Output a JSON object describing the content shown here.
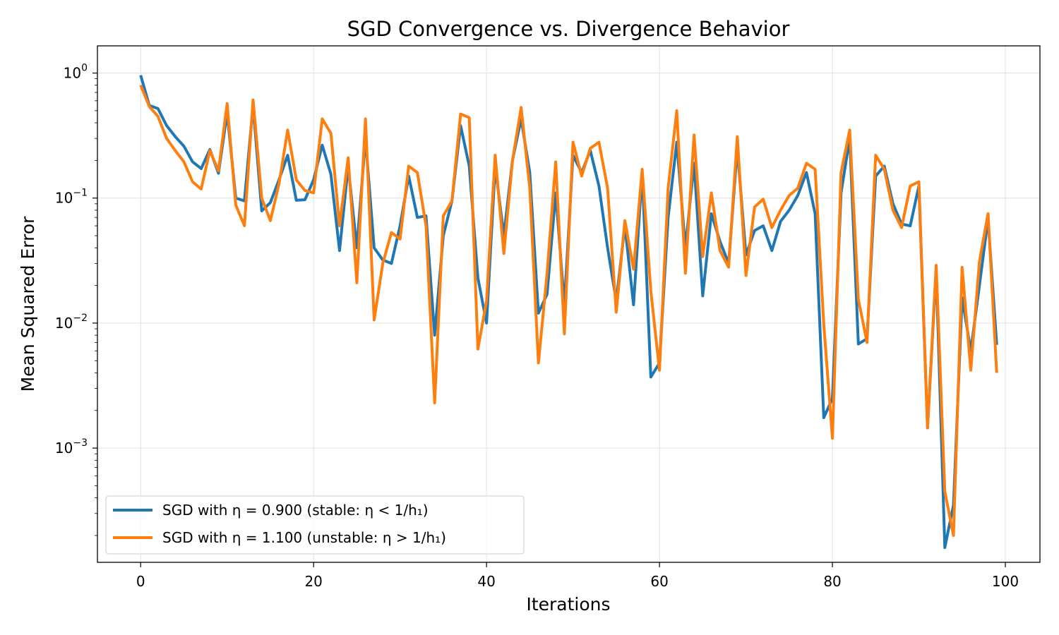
{
  "chart_data": {
    "type": "line",
    "title": "SGD Convergence vs. Divergence Behavior",
    "xlabel": "Iterations",
    "ylabel": "Mean Squared Error",
    "xlim": [
      -5,
      104
    ],
    "ylim": [
      0.000122,
      1.65
    ],
    "yscale": "log",
    "grid": true,
    "legend_position": "lower-left",
    "x_ticks": [
      {
        "value": 0,
        "label": "0"
      },
      {
        "value": 20,
        "label": "20"
      },
      {
        "value": 40,
        "label": "40"
      },
      {
        "value": 60,
        "label": "60"
      },
      {
        "value": 80,
        "label": "80"
      },
      {
        "value": 100,
        "label": "100"
      }
    ],
    "y_ticks": [
      {
        "value": 1,
        "base": "10",
        "exp": "0"
      },
      {
        "value": 0.1,
        "base": "10",
        "exp": "−1"
      },
      {
        "value": 0.01,
        "base": "10",
        "exp": "−2"
      },
      {
        "value": 0.001,
        "base": "10",
        "exp": "−3"
      }
    ],
    "series": [
      {
        "name": "SGD with η = 0.900 (stable: η < 1/h₁)",
        "color": "#1f77b4",
        "values": [
          0.96,
          0.55,
          0.52,
          0.38,
          0.31,
          0.26,
          0.195,
          0.172,
          0.245,
          0.158,
          0.48,
          0.1,
          0.095,
          0.55,
          0.079,
          0.092,
          0.14,
          0.22,
          0.096,
          0.097,
          0.14,
          0.265,
          0.155,
          0.038,
          0.18,
          0.04,
          0.3,
          0.04,
          0.032,
          0.03,
          0.06,
          0.15,
          0.07,
          0.072,
          0.008,
          0.05,
          0.095,
          0.38,
          0.18,
          0.023,
          0.01,
          0.18,
          0.05,
          0.2,
          0.43,
          0.16,
          0.012,
          0.017,
          0.11,
          0.014,
          0.22,
          0.16,
          0.24,
          0.125,
          0.04,
          0.015,
          0.06,
          0.014,
          0.16,
          0.0037,
          0.0048,
          0.07,
          0.28,
          0.04,
          0.19,
          0.0165,
          0.075,
          0.045,
          0.03,
          0.25,
          0.035,
          0.055,
          0.06,
          0.038,
          0.065,
          0.08,
          0.105,
          0.16,
          0.075,
          0.00175,
          0.0025,
          0.11,
          0.3,
          0.0068,
          0.0075,
          0.15,
          0.18,
          0.09,
          0.062,
          0.06,
          0.125,
          0.00145,
          0.027,
          0.00016,
          0.00035,
          0.016,
          0.006,
          0.02,
          0.068,
          0.0067
        ]
      },
      {
        "name": "SGD with η = 1.100 (unstable: η > 1/h₁)",
        "color": "#ff7f0e",
        "values": [
          0.8,
          0.54,
          0.45,
          0.3,
          0.24,
          0.195,
          0.135,
          0.118,
          0.24,
          0.165,
          0.57,
          0.088,
          0.06,
          0.61,
          0.1,
          0.066,
          0.13,
          0.35,
          0.14,
          0.115,
          0.11,
          0.43,
          0.33,
          0.06,
          0.21,
          0.021,
          0.43,
          0.0106,
          0.03,
          0.053,
          0.047,
          0.18,
          0.16,
          0.06,
          0.0023,
          0.072,
          0.095,
          0.47,
          0.44,
          0.0062,
          0.015,
          0.22,
          0.036,
          0.2,
          0.53,
          0.12,
          0.0048,
          0.025,
          0.195,
          0.0082,
          0.28,
          0.15,
          0.25,
          0.28,
          0.12,
          0.0122,
          0.066,
          0.027,
          0.17,
          0.018,
          0.0042,
          0.12,
          0.5,
          0.025,
          0.32,
          0.034,
          0.11,
          0.038,
          0.028,
          0.31,
          0.024,
          0.085,
          0.098,
          0.058,
          0.08,
          0.105,
          0.12,
          0.19,
          0.17,
          0.0098,
          0.0012,
          0.16,
          0.35,
          0.0155,
          0.007,
          0.22,
          0.17,
          0.08,
          0.058,
          0.125,
          0.135,
          0.00145,
          0.029,
          0.00045,
          0.0002,
          0.028,
          0.0042,
          0.031,
          0.075,
          0.004
        ]
      }
    ]
  }
}
